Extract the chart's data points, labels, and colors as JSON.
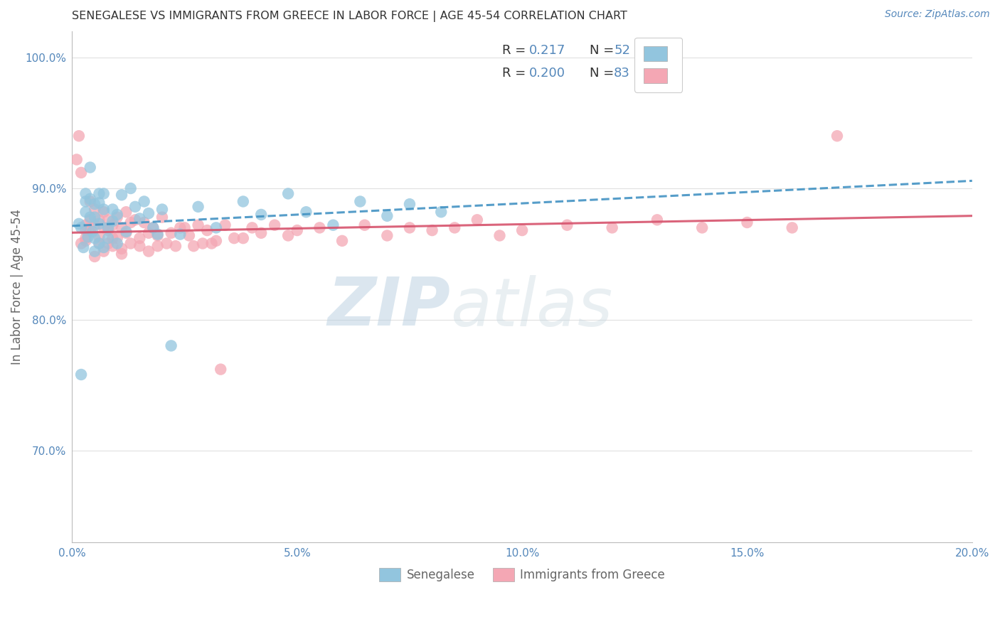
{
  "title": "SENEGALESE VS IMMIGRANTS FROM GREECE IN LABOR FORCE | AGE 45-54 CORRELATION CHART",
  "source": "Source: ZipAtlas.com",
  "ylabel": "In Labor Force | Age 45-54",
  "xlim": [
    0.0,
    0.2
  ],
  "ylim": [
    0.63,
    1.02
  ],
  "xticks": [
    0.0,
    0.05,
    0.1,
    0.15,
    0.2
  ],
  "xticklabels": [
    "0.0%",
    "5.0%",
    "10.0%",
    "15.0%",
    "20.0%"
  ],
  "yticks": [
    0.7,
    0.8,
    0.9,
    1.0
  ],
  "yticklabels": [
    "70.0%",
    "80.0%",
    "90.0%",
    "100.0%"
  ],
  "blue_color": "#92c5de",
  "pink_color": "#f4a7b4",
  "blue_line_color": "#4393c3",
  "pink_line_color": "#d6536d",
  "title_color": "#333333",
  "axis_label_color": "#666666",
  "tick_color": "#5588bb",
  "watermark": "ZIPatlas",
  "background_color": "#ffffff",
  "grid_color": "#e0e0e0",
  "sen_R": "0.217",
  "sen_N": "52",
  "gre_R": "0.200",
  "gre_N": "83",
  "senegalese_x": [
    0.0015,
    0.002,
    0.0025,
    0.003,
    0.003,
    0.0035,
    0.004,
    0.004,
    0.0045,
    0.005,
    0.005,
    0.005,
    0.006,
    0.006,
    0.006,
    0.007,
    0.007,
    0.008,
    0.008,
    0.009,
    0.009,
    0.01,
    0.01,
    0.011,
    0.012,
    0.013,
    0.014,
    0.015,
    0.016,
    0.017,
    0.018,
    0.019,
    0.02,
    0.022,
    0.024,
    0.028,
    0.032,
    0.038,
    0.042,
    0.048,
    0.052,
    0.058,
    0.064,
    0.07,
    0.075,
    0.082,
    0.002,
    0.003,
    0.004,
    0.005,
    0.006,
    0.007
  ],
  "senegalese_y": [
    0.873,
    0.758,
    0.855,
    0.882,
    0.896,
    0.863,
    0.878,
    0.916,
    0.867,
    0.862,
    0.878,
    0.852,
    0.889,
    0.873,
    0.858,
    0.896,
    0.855,
    0.87,
    0.862,
    0.884,
    0.875,
    0.858,
    0.88,
    0.895,
    0.867,
    0.9,
    0.886,
    0.877,
    0.89,
    0.881,
    0.87,
    0.865,
    0.884,
    0.78,
    0.865,
    0.886,
    0.87,
    0.89,
    0.88,
    0.896,
    0.882,
    0.872,
    0.89,
    0.879,
    0.888,
    0.882,
    0.87,
    0.89,
    0.892,
    0.888,
    0.896,
    0.884
  ],
  "greece_x": [
    0.001,
    0.0015,
    0.002,
    0.002,
    0.003,
    0.003,
    0.003,
    0.004,
    0.004,
    0.004,
    0.005,
    0.005,
    0.006,
    0.006,
    0.006,
    0.007,
    0.007,
    0.008,
    0.008,
    0.008,
    0.009,
    0.009,
    0.01,
    0.01,
    0.011,
    0.011,
    0.012,
    0.012,
    0.013,
    0.014,
    0.015,
    0.016,
    0.017,
    0.018,
    0.019,
    0.02,
    0.022,
    0.024,
    0.026,
    0.028,
    0.03,
    0.032,
    0.034,
    0.036,
    0.038,
    0.04,
    0.042,
    0.045,
    0.048,
    0.05,
    0.055,
    0.06,
    0.065,
    0.07,
    0.075,
    0.08,
    0.085,
    0.09,
    0.095,
    0.1,
    0.11,
    0.12,
    0.13,
    0.14,
    0.15,
    0.16,
    0.17,
    0.003,
    0.005,
    0.007,
    0.009,
    0.011,
    0.013,
    0.015,
    0.017,
    0.019,
    0.021,
    0.023,
    0.025,
    0.027,
    0.029,
    0.031,
    0.033
  ],
  "greece_y": [
    0.922,
    0.94,
    0.912,
    0.858,
    0.872,
    0.86,
    0.868,
    0.89,
    0.876,
    0.868,
    0.872,
    0.884,
    0.863,
    0.876,
    0.858,
    0.87,
    0.882,
    0.868,
    0.876,
    0.858,
    0.872,
    0.856,
    0.878,
    0.862,
    0.87,
    0.854,
    0.882,
    0.866,
    0.874,
    0.876,
    0.862,
    0.874,
    0.866,
    0.87,
    0.864,
    0.878,
    0.866,
    0.87,
    0.864,
    0.872,
    0.868,
    0.86,
    0.872,
    0.862,
    0.862,
    0.87,
    0.866,
    0.872,
    0.864,
    0.868,
    0.87,
    0.86,
    0.872,
    0.864,
    0.87,
    0.868,
    0.87,
    0.876,
    0.864,
    0.868,
    0.872,
    0.87,
    0.876,
    0.87,
    0.874,
    0.87,
    0.94,
    0.862,
    0.848,
    0.852,
    0.862,
    0.85,
    0.858,
    0.856,
    0.852,
    0.856,
    0.858,
    0.856,
    0.87,
    0.856,
    0.858,
    0.858,
    0.762
  ]
}
